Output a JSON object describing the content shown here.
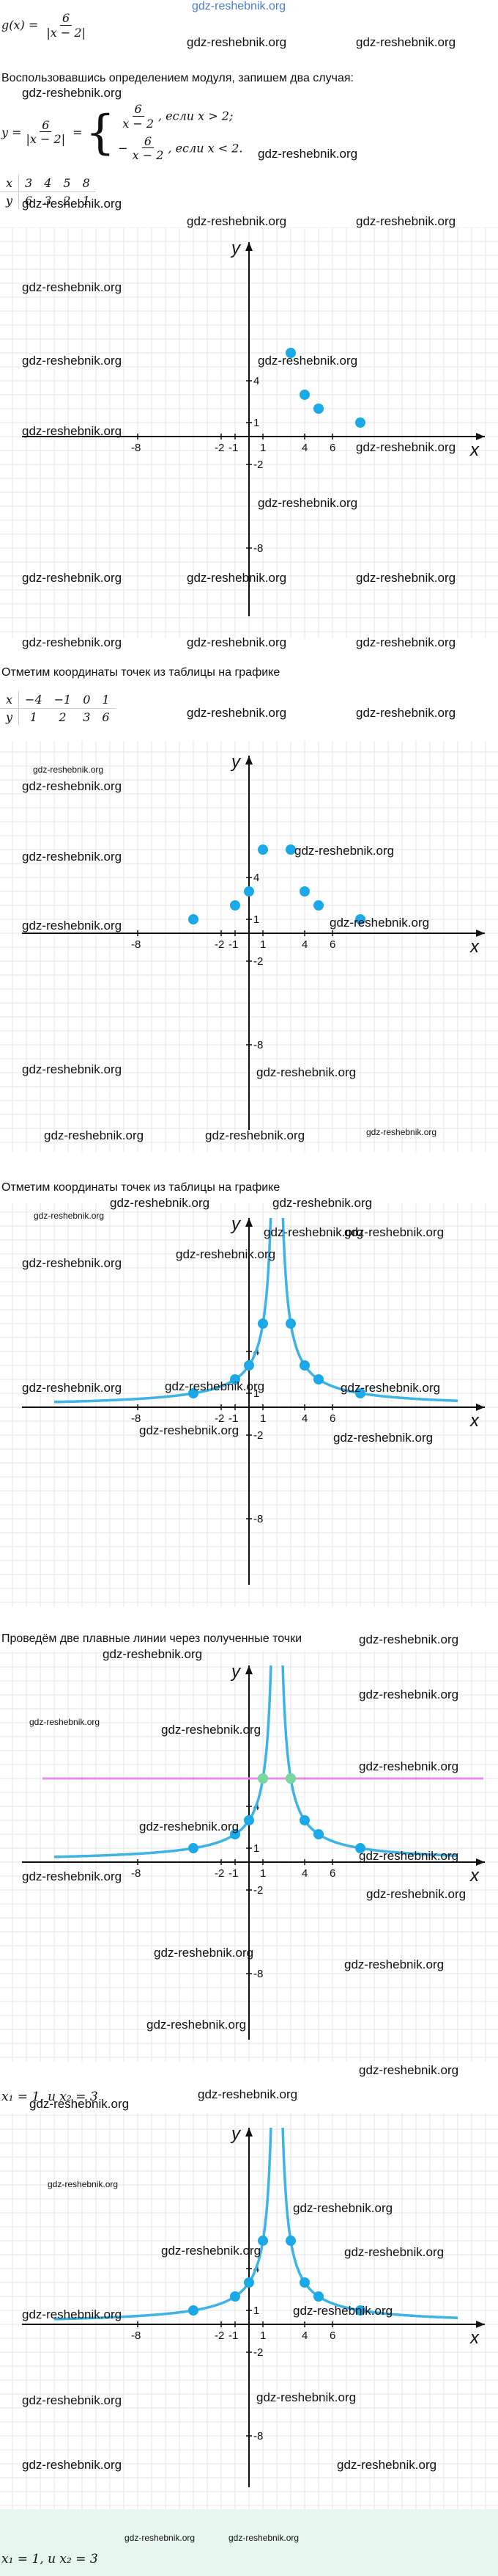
{
  "site": {
    "logo": "gdz-reshebnik.org",
    "watermark": "gdz-reshebnik.org"
  },
  "formula": {
    "lhs": "g(x) =",
    "num": "6",
    "den": "|x − 2|"
  },
  "intro_text": "Воспользовавшись определением модуля, запишем два случая:",
  "cases": {
    "lhs": "y =",
    "num": "6",
    "den": "|x − 2|",
    "case1_num": "6",
    "case1_den": "x − 2",
    "case1_cond": "если x > 2;",
    "case2_sign": "−",
    "case2_num": "6",
    "case2_den": "x − 2",
    "case2_cond": "если x < 2."
  },
  "table1": {
    "x_label": "x",
    "y_label": "y",
    "x": [
      "3",
      "4",
      "5",
      "8"
    ],
    "y": [
      "6",
      "3",
      "2",
      "1"
    ]
  },
  "mark_text": "Отметим координаты точек из таблицы на графике",
  "table2": {
    "x_label": "x",
    "y_label": "y",
    "x": [
      "−4",
      "−1",
      "0",
      "1"
    ],
    "y": [
      "1",
      "2",
      "3",
      "6"
    ]
  },
  "mark_text_2": "Отметим координаты точек из таблицы на графике",
  "smooth_text": "Проведём две плавные линии через полученные точки",
  "answer_1": "x₁ = 1, и x₂ = 3",
  "answer_2": "x₁ = 1, и x₂ = 3",
  "axes": {
    "x_label": "x",
    "y_label": "y",
    "x_ticks": [
      "-8",
      "-2",
      "-1",
      "1",
      "4",
      "6"
    ],
    "y_ticks": [
      "4",
      "1",
      "-2",
      "-8"
    ]
  },
  "chart_data": [
    {
      "type": "scatter",
      "title": "",
      "xlabel": "x",
      "ylabel": "y",
      "series": [
        {
          "x": [
            3,
            4,
            5,
            8
          ],
          "y": [
            6,
            3,
            2,
            1
          ]
        }
      ]
    },
    {
      "type": "scatter",
      "title": "",
      "xlabel": "x",
      "ylabel": "y",
      "series": [
        {
          "x": [
            3,
            4,
            5,
            8,
            -4,
            -1,
            0,
            1
          ],
          "y": [
            6,
            3,
            2,
            1,
            1,
            2,
            3,
            6
          ]
        }
      ]
    },
    {
      "type": "line",
      "title": "",
      "xlabel": "x",
      "ylabel": "y",
      "function": "y = 6/|x-2|",
      "series": [
        {
          "x": [
            3,
            4,
            5,
            8,
            -4,
            -1,
            0,
            1
          ],
          "y": [
            6,
            3,
            2,
            1,
            1,
            2,
            3,
            6
          ]
        }
      ]
    },
    {
      "type": "line",
      "title": "",
      "xlabel": "x",
      "ylabel": "y",
      "function": "y = 6/|x-2|",
      "horizontal_line_y": 6,
      "intersections": [
        {
          "x": 1,
          "y": 6
        },
        {
          "x": 3,
          "y": 6
        }
      ],
      "series": [
        {
          "x": [
            3,
            4,
            5,
            8,
            -4,
            -1,
            0,
            1
          ],
          "y": [
            6,
            3,
            2,
            1,
            1,
            2,
            3,
            6
          ]
        }
      ]
    },
    {
      "type": "line",
      "title": "",
      "xlabel": "x",
      "ylabel": "y",
      "function": "y = 6/|x-2|",
      "series": [
        {
          "x": [
            3,
            4,
            5,
            8,
            -4,
            -1,
            0,
            1
          ],
          "y": [
            6,
            3,
            2,
            1,
            1,
            2,
            3,
            6
          ]
        }
      ]
    }
  ],
  "colors": {
    "grid": "#e6e6e6",
    "axis": "#111111",
    "curve": "#3db3e6",
    "point": "#1ba9e8",
    "hline": "#e48de4",
    "highlight": "#7ad79a",
    "footer": "#e7f7ef"
  }
}
